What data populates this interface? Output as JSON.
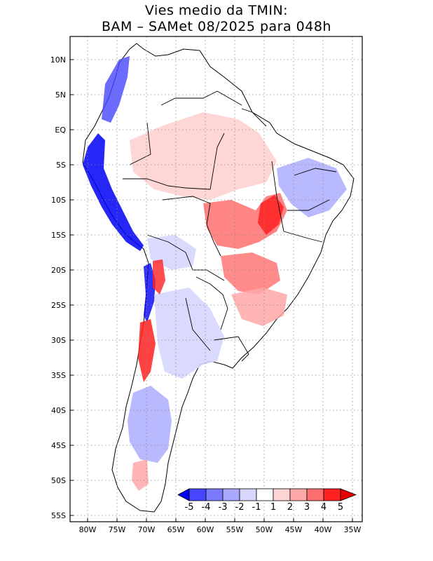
{
  "title": {
    "line1": "Vies medio da TMIN:",
    "line2": "BAM – SAMet 08/2025  para 048h"
  },
  "map": {
    "lat_labels": [
      "10N",
      "5N",
      "EQ",
      "5S",
      "10S",
      "15S",
      "20S",
      "25S",
      "30S",
      "35S",
      "40S",
      "45S",
      "50S",
      "55S"
    ],
    "lon_labels": [
      "80W",
      "75W",
      "70W",
      "65W",
      "60W",
      "55W",
      "50W",
      "45W",
      "40W",
      "35W"
    ],
    "lon_range": [
      -82,
      -34
    ],
    "lat_range": [
      -56,
      13
    ],
    "grid": "dotted"
  },
  "colorbar": {
    "labels": [
      "-5",
      "-4",
      "-3",
      "-2",
      "-1",
      "1",
      "2",
      "3",
      "4",
      "5"
    ],
    "colors": [
      "#0000f5",
      "#4646ff",
      "#7a7aff",
      "#a8a8ff",
      "#d6d6ff",
      "#ffffff",
      "#ffd4d4",
      "#ffa8a8",
      "#ff6e6e",
      "#ff2020",
      "#e60000"
    ]
  },
  "legend_colors": {
    "warm": "#ff2020",
    "cold": "#0000f5",
    "border": "#000000"
  }
}
